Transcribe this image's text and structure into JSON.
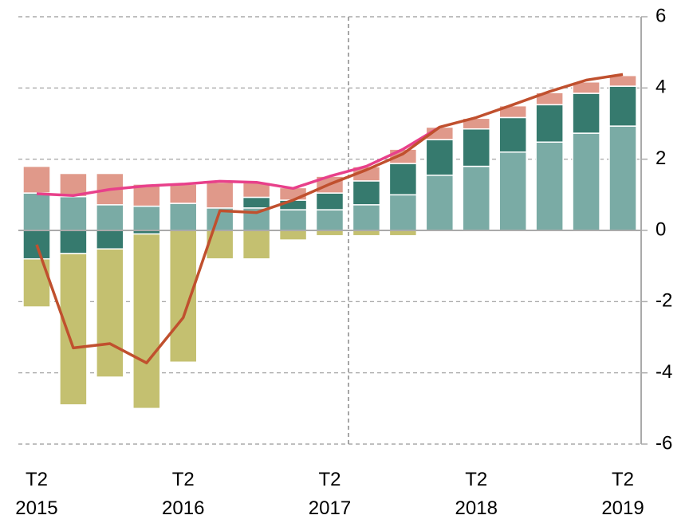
{
  "chart_data": {
    "type": "bar",
    "categories": [
      "T2 2015",
      null,
      null,
      null,
      "T2 2016",
      null,
      null,
      null,
      "T2 2017",
      null,
      null,
      null,
      "T2 2018",
      null,
      null,
      null,
      "T2 2019"
    ],
    "series": [
      {
        "color": "#7aaba5",
        "values": [
          1.05,
          0.95,
          0.72,
          0.68,
          0.76,
          0.63,
          0.63,
          0.58,
          0.58,
          0.72,
          1.0,
          1.55,
          1.8,
          2.2,
          2.48,
          2.73,
          2.93
        ]
      },
      {
        "color": "#367a6e",
        "values": [
          -0.8,
          -0.65,
          -0.52,
          -0.1,
          0,
          0,
          0.3,
          0.27,
          0.47,
          0.67,
          0.88,
          1.0,
          1.05,
          0.97,
          1.05,
          1.12,
          1.12
        ]
      },
      {
        "color": "#e0998a",
        "values": [
          0.75,
          0.65,
          0.88,
          0.62,
          0.54,
          0.72,
          0.42,
          0.35,
          0.47,
          0.4,
          0.4,
          0.35,
          0.3,
          0.33,
          0.34,
          0.32,
          0.3
        ]
      },
      {
        "color": "#c4c070",
        "values": [
          -1.35,
          -4.25,
          -3.6,
          -4.9,
          -3.7,
          -0.8,
          -0.8,
          -0.27,
          -0.15,
          -0.15,
          -0.15,
          0,
          0,
          0,
          0,
          0,
          0
        ]
      },
      {
        "type": "line",
        "color": "#e8408a",
        "values": [
          1.03,
          0.98,
          1.15,
          1.25,
          1.3,
          1.38,
          1.35,
          1.18,
          1.52,
          1.8,
          2.28,
          2.9,
          null,
          null,
          null,
          null,
          null
        ]
      },
      {
        "type": "line",
        "color": "#c0502e",
        "values": [
          -0.4,
          -3.3,
          -3.18,
          -3.72,
          -2.45,
          0.55,
          0.5,
          0.85,
          1.3,
          1.7,
          2.15,
          2.9,
          3.17,
          3.53,
          3.9,
          4.22,
          4.38
        ]
      }
    ],
    "ylim": [
      -6,
      6
    ],
    "yticks": [
      -6,
      -4,
      -2,
      0,
      2,
      4,
      6
    ],
    "grid": true
  }
}
